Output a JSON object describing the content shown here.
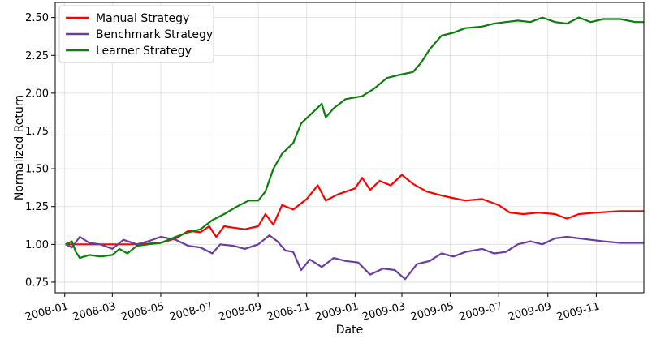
{
  "chart_data": {
    "type": "line",
    "title": "",
    "xlabel": "Date",
    "ylabel": "Normalized Return",
    "xlim": [
      "2007-12-20",
      "2009-12-31"
    ],
    "ylim": [
      0.68,
      2.6
    ],
    "x_ticks": [
      "2008-01",
      "2008-03",
      "2008-05",
      "2008-07",
      "2008-09",
      "2008-11",
      "2009-01",
      "2009-03",
      "2009-05",
      "2009-07",
      "2009-09",
      "2009-11"
    ],
    "y_ticks": [
      "0.75",
      "1.00",
      "1.25",
      "1.50",
      "1.75",
      "2.00",
      "2.25",
      "2.50"
    ],
    "grid": true,
    "legend_position": "top-left",
    "series": [
      {
        "name": "Manual Strategy",
        "color": "#ff0000",
        "points": [
          [
            "2008-01-02",
            1.0
          ],
          [
            "2008-02-01",
            1.0
          ],
          [
            "2008-03-01",
            1.0
          ],
          [
            "2008-04-01",
            1.0
          ],
          [
            "2008-05-01",
            1.01
          ],
          [
            "2008-05-20",
            1.04
          ],
          [
            "2008-06-05",
            1.09
          ],
          [
            "2008-06-20",
            1.08
          ],
          [
            "2008-07-01",
            1.12
          ],
          [
            "2008-07-10",
            1.05
          ],
          [
            "2008-07-20",
            1.12
          ],
          [
            "2008-08-01",
            1.11
          ],
          [
            "2008-08-15",
            1.1
          ],
          [
            "2008-09-01",
            1.12
          ],
          [
            "2008-09-10",
            1.2
          ],
          [
            "2008-09-20",
            1.13
          ],
          [
            "2008-10-01",
            1.26
          ],
          [
            "2008-10-15",
            1.23
          ],
          [
            "2008-11-01",
            1.3
          ],
          [
            "2008-11-15",
            1.39
          ],
          [
            "2008-11-25",
            1.29
          ],
          [
            "2008-12-10",
            1.33
          ],
          [
            "2009-01-01",
            1.37
          ],
          [
            "2009-01-10",
            1.44
          ],
          [
            "2009-01-20",
            1.36
          ],
          [
            "2009-02-01",
            1.42
          ],
          [
            "2009-02-15",
            1.39
          ],
          [
            "2009-03-01",
            1.46
          ],
          [
            "2009-03-15",
            1.4
          ],
          [
            "2009-04-01",
            1.35
          ],
          [
            "2009-04-15",
            1.33
          ],
          [
            "2009-05-01",
            1.31
          ],
          [
            "2009-05-20",
            1.29
          ],
          [
            "2009-06-10",
            1.3
          ],
          [
            "2009-07-01",
            1.26
          ],
          [
            "2009-07-15",
            1.21
          ],
          [
            "2009-08-01",
            1.2
          ],
          [
            "2009-08-20",
            1.21
          ],
          [
            "2009-09-10",
            1.2
          ],
          [
            "2009-09-25",
            1.17
          ],
          [
            "2009-10-10",
            1.2
          ],
          [
            "2009-11-01",
            1.21
          ],
          [
            "2009-12-01",
            1.22
          ],
          [
            "2009-12-31",
            1.22
          ]
        ]
      },
      {
        "name": "Benchmark Strategy",
        "color": "#6a3ea1",
        "points": [
          [
            "2008-01-02",
            1.0
          ],
          [
            "2008-01-10",
            0.98
          ],
          [
            "2008-01-20",
            1.05
          ],
          [
            "2008-02-01",
            1.01
          ],
          [
            "2008-02-15",
            1.0
          ],
          [
            "2008-03-01",
            0.97
          ],
          [
            "2008-03-15",
            1.03
          ],
          [
            "2008-04-01",
            1.0
          ],
          [
            "2008-04-15",
            1.02
          ],
          [
            "2008-05-01",
            1.05
          ],
          [
            "2008-05-20",
            1.03
          ],
          [
            "2008-06-05",
            0.99
          ],
          [
            "2008-06-20",
            0.98
          ],
          [
            "2008-07-05",
            0.94
          ],
          [
            "2008-07-15",
            1.0
          ],
          [
            "2008-08-01",
            0.99
          ],
          [
            "2008-08-15",
            0.97
          ],
          [
            "2008-09-01",
            1.0
          ],
          [
            "2008-09-15",
            1.06
          ],
          [
            "2008-09-25",
            1.02
          ],
          [
            "2008-10-05",
            0.96
          ],
          [
            "2008-10-15",
            0.95
          ],
          [
            "2008-10-25",
            0.83
          ],
          [
            "2008-11-05",
            0.9
          ],
          [
            "2008-11-20",
            0.85
          ],
          [
            "2008-12-05",
            0.91
          ],
          [
            "2008-12-20",
            0.89
          ],
          [
            "2009-01-05",
            0.88
          ],
          [
            "2009-01-20",
            0.8
          ],
          [
            "2009-02-05",
            0.84
          ],
          [
            "2009-02-20",
            0.83
          ],
          [
            "2009-03-05",
            0.77
          ],
          [
            "2009-03-20",
            0.87
          ],
          [
            "2009-04-05",
            0.89
          ],
          [
            "2009-04-20",
            0.94
          ],
          [
            "2009-05-05",
            0.92
          ],
          [
            "2009-05-20",
            0.95
          ],
          [
            "2009-06-10",
            0.97
          ],
          [
            "2009-06-25",
            0.94
          ],
          [
            "2009-07-10",
            0.95
          ],
          [
            "2009-07-25",
            1.0
          ],
          [
            "2009-08-10",
            1.02
          ],
          [
            "2009-08-25",
            1.0
          ],
          [
            "2009-09-10",
            1.04
          ],
          [
            "2009-09-25",
            1.05
          ],
          [
            "2009-10-10",
            1.04
          ],
          [
            "2009-10-25",
            1.03
          ],
          [
            "2009-11-10",
            1.02
          ],
          [
            "2009-12-01",
            1.01
          ],
          [
            "2009-12-31",
            1.01
          ]
        ]
      },
      {
        "name": "Learner Strategy",
        "color": "#0a7f0a",
        "points": [
          [
            "2008-01-02",
            1.0
          ],
          [
            "2008-01-10",
            1.02
          ],
          [
            "2008-01-15",
            0.95
          ],
          [
            "2008-01-20",
            0.91
          ],
          [
            "2008-02-01",
            0.93
          ],
          [
            "2008-02-15",
            0.92
          ],
          [
            "2008-03-01",
            0.93
          ],
          [
            "2008-03-10",
            0.97
          ],
          [
            "2008-03-20",
            0.94
          ],
          [
            "2008-04-01",
            0.99
          ],
          [
            "2008-04-15",
            1.0
          ],
          [
            "2008-05-01",
            1.01
          ],
          [
            "2008-05-20",
            1.05
          ],
          [
            "2008-06-05",
            1.08
          ],
          [
            "2008-06-20",
            1.1
          ],
          [
            "2008-07-05",
            1.16
          ],
          [
            "2008-07-20",
            1.2
          ],
          [
            "2008-08-05",
            1.25
          ],
          [
            "2008-08-20",
            1.29
          ],
          [
            "2008-09-01",
            1.29
          ],
          [
            "2008-09-10",
            1.35
          ],
          [
            "2008-09-20",
            1.5
          ],
          [
            "2008-10-01",
            1.6
          ],
          [
            "2008-10-15",
            1.67
          ],
          [
            "2008-10-25",
            1.8
          ],
          [
            "2008-11-10",
            1.88
          ],
          [
            "2008-11-20",
            1.93
          ],
          [
            "2008-11-25",
            1.84
          ],
          [
            "2008-12-05",
            1.9
          ],
          [
            "2008-12-20",
            1.96
          ],
          [
            "2009-01-10",
            1.98
          ],
          [
            "2009-01-25",
            2.03
          ],
          [
            "2009-02-10",
            2.1
          ],
          [
            "2009-02-25",
            2.12
          ],
          [
            "2009-03-15",
            2.14
          ],
          [
            "2009-03-25",
            2.2
          ],
          [
            "2009-04-05",
            2.29
          ],
          [
            "2009-04-20",
            2.38
          ],
          [
            "2009-05-05",
            2.4
          ],
          [
            "2009-05-20",
            2.43
          ],
          [
            "2009-06-10",
            2.44
          ],
          [
            "2009-06-25",
            2.46
          ],
          [
            "2009-07-10",
            2.47
          ],
          [
            "2009-07-25",
            2.48
          ],
          [
            "2009-08-10",
            2.47
          ],
          [
            "2009-08-25",
            2.5
          ],
          [
            "2009-09-10",
            2.47
          ],
          [
            "2009-09-25",
            2.46
          ],
          [
            "2009-10-10",
            2.5
          ],
          [
            "2009-10-25",
            2.47
          ],
          [
            "2009-11-10",
            2.49
          ],
          [
            "2009-12-01",
            2.49
          ],
          [
            "2009-12-20",
            2.47
          ],
          [
            "2009-12-31",
            2.47
          ]
        ]
      }
    ]
  }
}
